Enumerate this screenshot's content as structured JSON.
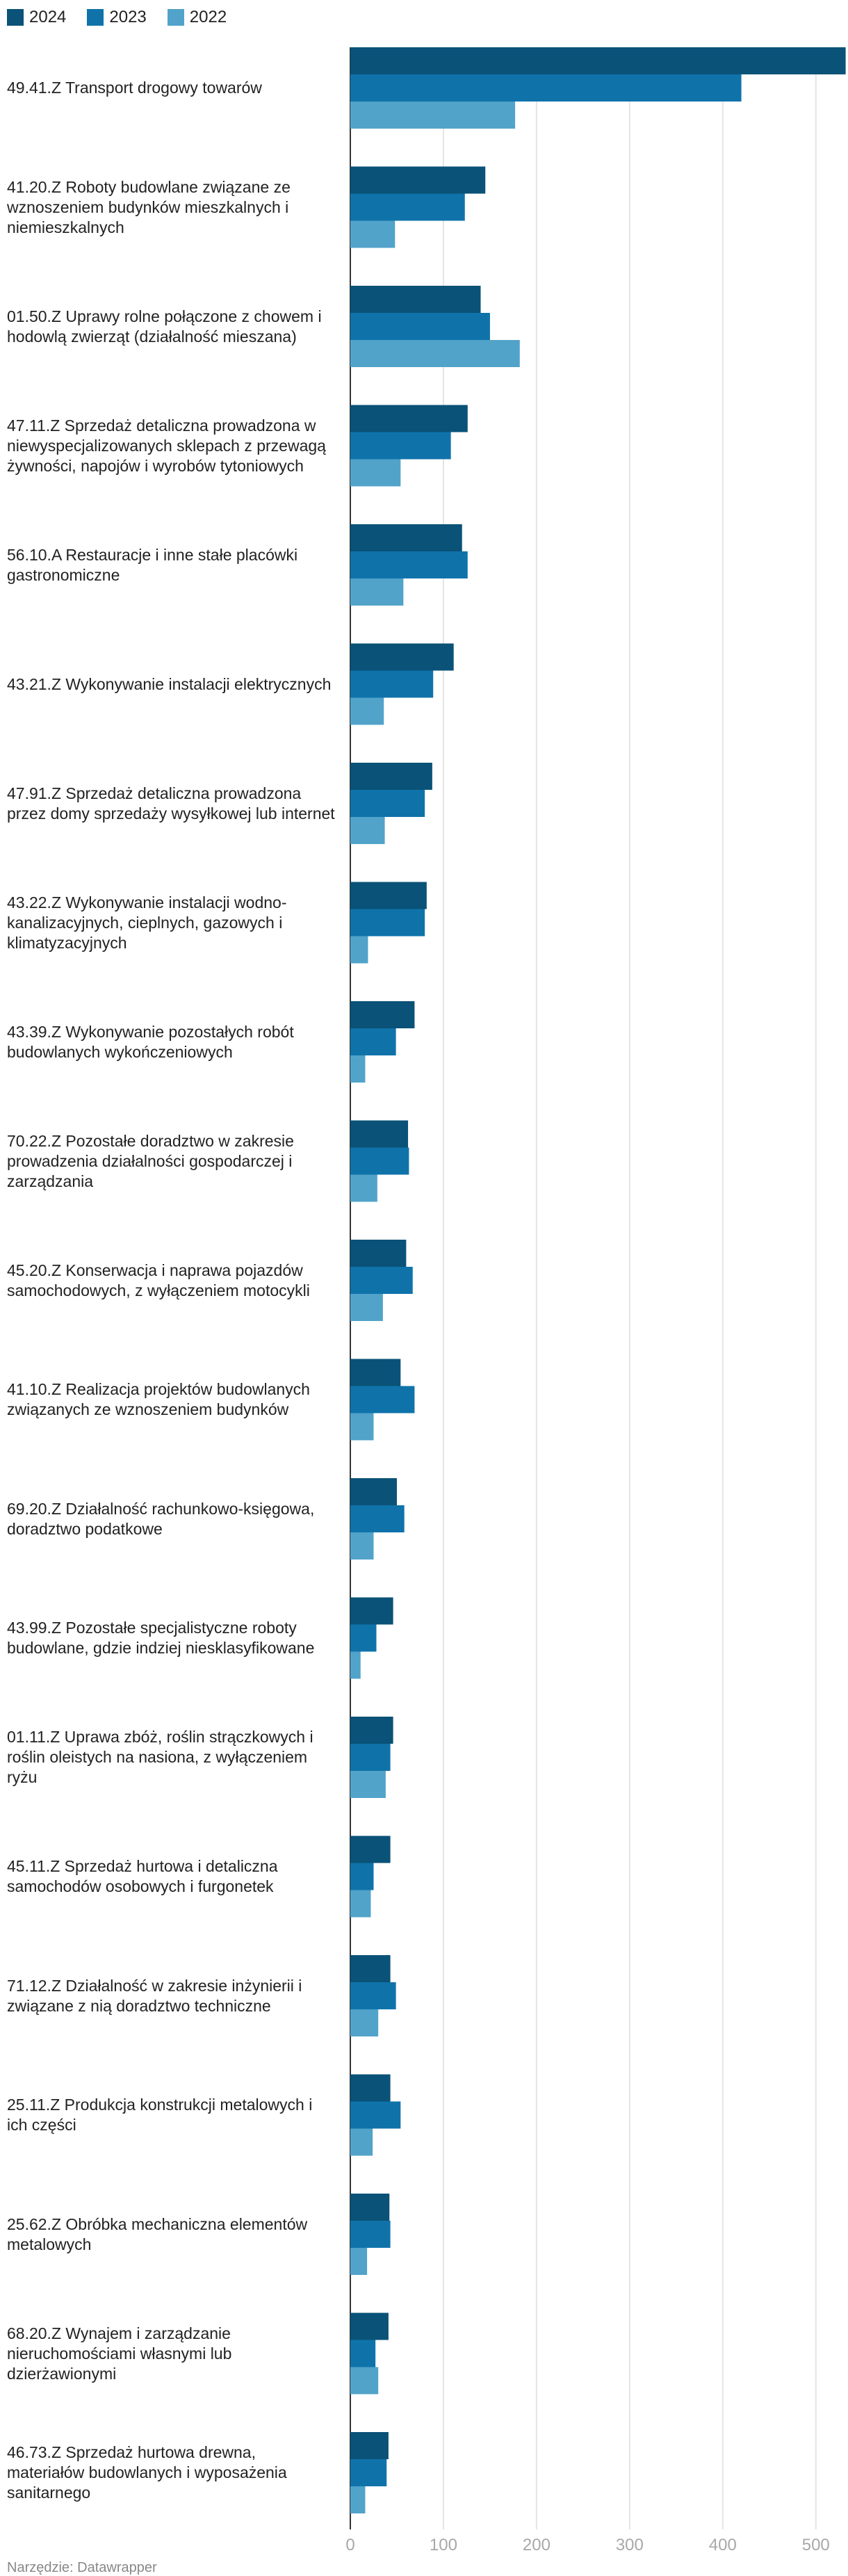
{
  "legend": [
    {
      "name": "2024",
      "color": "#0a5277"
    },
    {
      "name": "2023",
      "color": "#0f73aa"
    },
    {
      "name": "2022",
      "color": "#51a3c9"
    }
  ],
  "footer": "Narzędzie: Datawrapper",
  "chart_data": {
    "type": "bar",
    "orientation": "horizontal",
    "title": "",
    "xlabel": "",
    "ylabel": "",
    "xlim": [
      0,
      530
    ],
    "x_ticks": [
      "0",
      "100",
      "200",
      "300",
      "400",
      "500"
    ],
    "grid": true,
    "legend_position": "top-left",
    "categories": [
      "49.41.Z Transport drogowy towarów",
      "41.20.Z Roboty budowlane związane ze wznoszeniem budynków mieszkalnych i niemieszkalnych",
      "01.50.Z Uprawy rolne połączone z chowem i hodowlą zwierząt (działalność mieszana)",
      "47.11.Z Sprzedaż detaliczna prowadzona w niewyspecjalizowanych sklepach z przewagą żywności, napojów i wyrobów tytoniowych",
      "56.10.A Restauracje i inne stałe placówki gastronomiczne",
      "43.21.Z Wykonywanie instalacji elektrycznych",
      "47.91.Z Sprzedaż detaliczna prowadzona przez domy sprzedaży wysyłkowej lub internet",
      "43.22.Z Wykonywanie instalacji wodno-kanalizacyjnych, cieplnych, gazowych i klimatyzacyjnych",
      "43.39.Z Wykonywanie pozostałych robót budowlanych wykończeniowych",
      "70.22.Z Pozostałe doradztwo w zakresie prowadzenia działalności gospodarczej i zarządzania",
      "45.20.Z Konserwacja i naprawa pojazdów samochodowych, z wyłączeniem motocykli",
      "41.10.Z Realizacja projektów budowlanych związanych ze wznoszeniem budynków",
      "69.20.Z Działalność rachunkowo-księgowa, doradztwo podatkowe",
      "43.99.Z Pozostałe specjalistyczne roboty budowlane, gdzie indziej niesklasyfikowane",
      "01.11.Z Uprawa zbóż, roślin strączkowych i roślin oleistych na nasiona, z wyłączeniem ryżu",
      "45.11.Z Sprzedaż hurtowa i detaliczna samochodów osobowych i furgonetek",
      "71.12.Z Działalność w zakresie inżynierii i związane z nią doradztwo techniczne",
      "25.11.Z Produkcja konstrukcji metalowych i ich części",
      "25.62.Z Obróbka mechaniczna elementów metalowych",
      "68.20.Z Wynajem i zarządzanie nieruchomościami własnymi lub dzierżawionymi",
      "46.73.Z Sprzedaż hurtowa drewna, materiałów budowlanych i wyposażenia sanitarnego"
    ],
    "series": [
      {
        "name": "2024",
        "color": "#0a5277",
        "values": [
          532,
          145,
          140,
          126,
          120,
          111,
          88,
          82,
          69,
          62,
          60,
          54,
          50,
          46,
          46,
          43,
          43,
          43,
          42,
          41,
          41
        ]
      },
      {
        "name": "2023",
        "color": "#0f73aa",
        "values": [
          420,
          123,
          150,
          108,
          126,
          89,
          80,
          80,
          49,
          63,
          67,
          69,
          58,
          28,
          43,
          25,
          49,
          54,
          43,
          27,
          39
        ]
      },
      {
        "name": "2022",
        "color": "#51a3c9",
        "values": [
          177,
          48,
          182,
          54,
          57,
          36,
          37,
          19,
          16,
          29,
          35,
          25,
          25,
          11,
          38,
          22,
          30,
          24,
          18,
          30,
          16
        ]
      }
    ]
  }
}
